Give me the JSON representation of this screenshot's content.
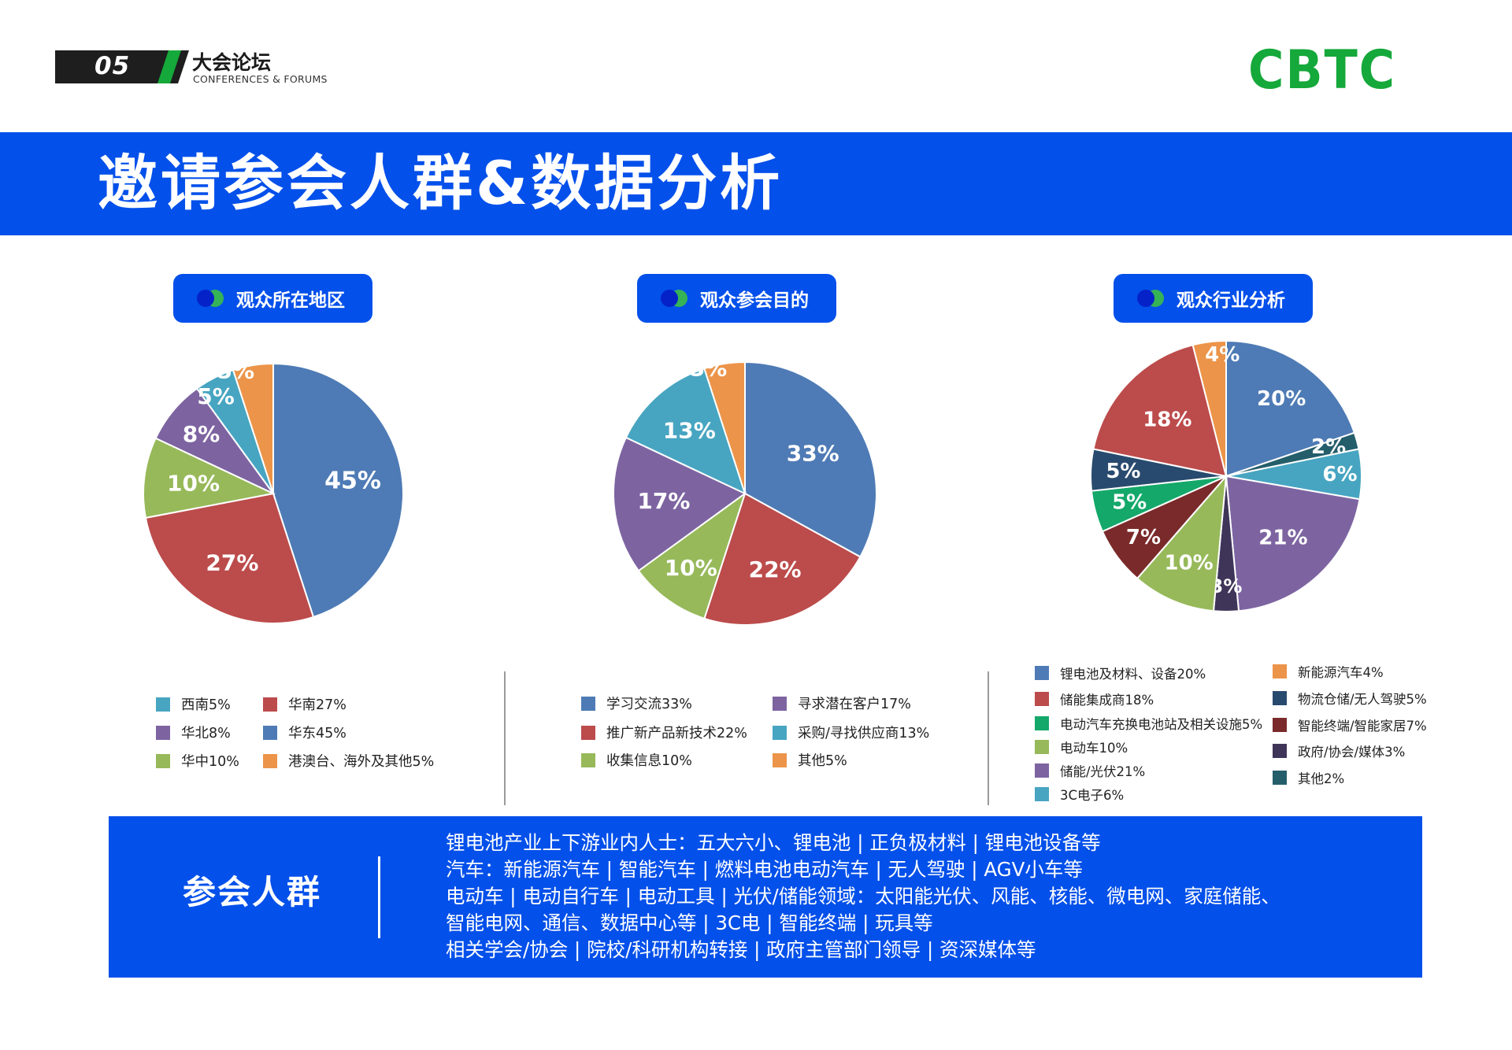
{
  "header": {
    "page_number": "05",
    "section_title": "大会论坛",
    "section_subtitle": "CONFERENCES & FORUMS",
    "logo_text": "CBTC"
  },
  "title": "邀请参会人群&数据分析",
  "colors": {
    "accent_blue": "#0350ea",
    "brand_green": "#15a83a"
  },
  "chart_data": [
    {
      "type": "pie",
      "title": "观众所在地区",
      "slices": [
        {
          "name": "华东45%",
          "value": 45,
          "label": "45%",
          "color": "#4e7bb5"
        },
        {
          "name": "华南27%",
          "value": 27,
          "label": "27%",
          "color": "#bc4b4b"
        },
        {
          "name": "华中10%",
          "value": 10,
          "label": "10%",
          "color": "#97b95a"
        },
        {
          "name": "华北8%",
          "value": 8,
          "label": "8%",
          "color": "#7d64a1"
        },
        {
          "name": "西南5%",
          "value": 5,
          "label": "5%",
          "color": "#47a5c1"
        },
        {
          "name": "港澳台、海外及其他5%",
          "value": 5,
          "label": "5%",
          "color": "#ec9449"
        }
      ],
      "legend_order": [
        4,
        1,
        3,
        0,
        2,
        5
      ]
    },
    {
      "type": "pie",
      "title": "观众参会目的",
      "slices": [
        {
          "name": "学习交流33%",
          "value": 33,
          "label": "33%",
          "color": "#4e7bb5"
        },
        {
          "name": "推广新产品新技术22%",
          "value": 22,
          "label": "22%",
          "color": "#bc4b4b"
        },
        {
          "name": "收集信息10%",
          "value": 10,
          "label": "10%",
          "color": "#97b95a"
        },
        {
          "name": "寻求潜在客户17%",
          "value": 17,
          "label": "17%",
          "color": "#7d64a1"
        },
        {
          "name": "采购/寻找供应商13%",
          "value": 13,
          "label": "13%",
          "color": "#47a5c1"
        },
        {
          "name": "其他5%",
          "value": 5,
          "label": "5%",
          "color": "#ec9449"
        }
      ],
      "legend_order": [
        0,
        3,
        1,
        4,
        2,
        5
      ]
    },
    {
      "type": "pie",
      "title": "观众行业分析",
      "slices": [
        {
          "name": "锂电池及材料、设备20%",
          "value": 20,
          "label": "20%",
          "color": "#4e7bb5"
        },
        {
          "name": "其他2%",
          "value": 2,
          "label": "2%",
          "color": "#245e6b"
        },
        {
          "name": "3C电子6%",
          "value": 6,
          "label": "6%",
          "color": "#47a5c1"
        },
        {
          "name": "储能/光伏21%",
          "value": 21,
          "label": "21%",
          "color": "#7d64a1"
        },
        {
          "name": "政府/协会/媒体3%",
          "value": 3,
          "label": "3%",
          "color": "#3f3559"
        },
        {
          "name": "电动车10%",
          "value": 10,
          "label": "10%",
          "color": "#97b95a"
        },
        {
          "name": "智能终端/智能家居7%",
          "value": 7,
          "label": "7%",
          "color": "#7a2a2a"
        },
        {
          "name": "电动汽车充换电池站及相关设施5%",
          "value": 5,
          "label": "5%",
          "color": "#14a86a"
        },
        {
          "name": "物流仓储/无人驾驶5%",
          "value": 5,
          "label": "5%",
          "color": "#284a6e"
        },
        {
          "name": "储能集成商18%",
          "value": 18,
          "label": "18%",
          "color": "#bc4b4b"
        },
        {
          "name": "新能源汽车4%",
          "value": 4,
          "label": "4%",
          "color": "#ec9449"
        }
      ],
      "legend_left": [
        0,
        9,
        7,
        5,
        3,
        2
      ],
      "legend_right": [
        10,
        8,
        6,
        4,
        1
      ]
    }
  ],
  "audience": {
    "title": "参会人群",
    "lines": [
      "锂电池产业上下游业内人士：五大六小、锂电池 | 正负极材料 | 锂电池设备等",
      "汽车：新能源汽车 | 智能汽车 | 燃料电池电动汽车 | 无人驾驶 | AGV小车等",
      "电动车 | 电动自行车 | 电动工具 | 光伏/储能领域：太阳能光伏、风能、核能、微电网、家庭储能、",
      "智能电网、通信、数据中心等 | 3C电 | 智能终端 | 玩具等",
      "相关学会/协会 | 院校/科研机构转接 | 政府主管部门领导 | 资深媒体等"
    ]
  }
}
